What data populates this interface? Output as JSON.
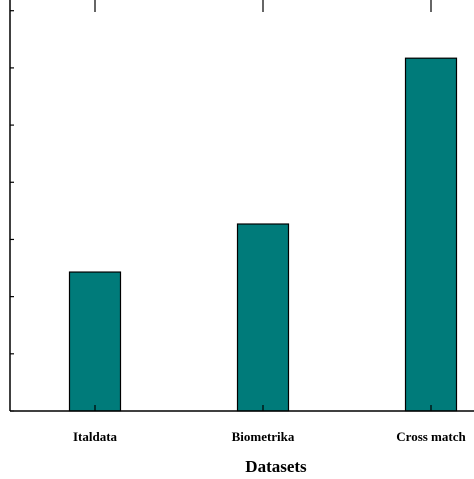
{
  "chart_data": {
    "type": "bar",
    "title": "",
    "xlabel": "Datasets",
    "ylabel": "",
    "categories": [
      "Italdata",
      "Biometrika",
      "Cross match"
    ],
    "values": [
      2.43,
      3.27,
      6.17
    ],
    "ylim": [
      0,
      7.1
    ],
    "yticks": [
      0,
      1,
      2,
      3,
      4,
      5,
      6,
      7
    ],
    "grid": false,
    "legend": "none",
    "bar_color": "#007B7A",
    "bar_edge_color": "#000000",
    "axis_color": "#000000"
  }
}
